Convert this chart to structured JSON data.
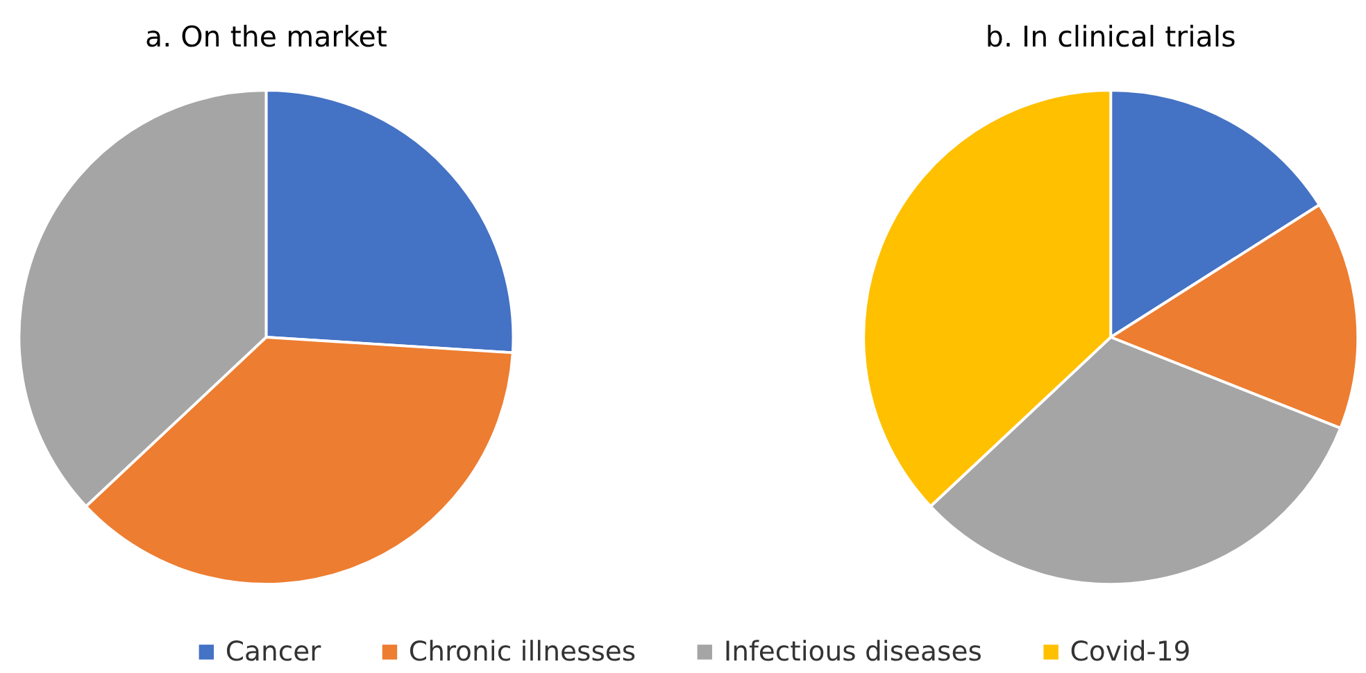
{
  "chart_data": {
    "type": "pie",
    "categories": [
      "Cancer",
      "Chronic illnesses",
      "Infectious diseases",
      "Covid-19"
    ],
    "colors": [
      "#4472c4",
      "#ed7d31",
      "#a5a5a5",
      "#ffc000"
    ],
    "series": [
      {
        "name": "a. On the market",
        "values": [
          26,
          37,
          37,
          null
        ]
      },
      {
        "name": "b. In clinical trials",
        "values": [
          16,
          15,
          32,
          37
        ]
      }
    ],
    "legend": "bottom"
  }
}
